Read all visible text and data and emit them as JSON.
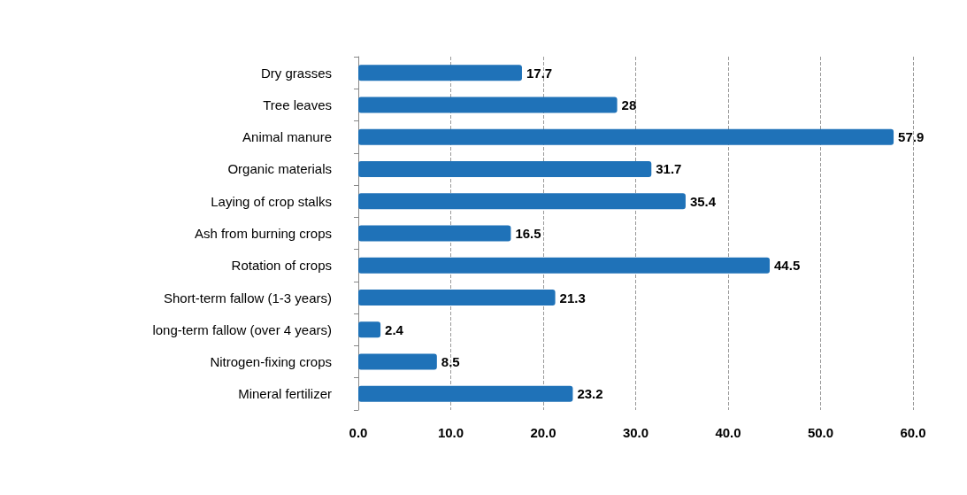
{
  "chart_data": {
    "type": "bar",
    "orientation": "horizontal",
    "categories": [
      "Dry grasses",
      "Tree leaves",
      "Animal manure",
      "Organic materials",
      "Laying of crop stalks",
      "Ash from burning crops",
      "Rotation of crops",
      "Short-term fallow (1-3 years)",
      "long-term fallow (over 4 years)",
      "Nitrogen-fixing crops",
      "Mineral fertilizer"
    ],
    "values": [
      17.7,
      28,
      57.9,
      31.7,
      35.4,
      16.5,
      44.5,
      21.3,
      2.4,
      8.5,
      23.2
    ],
    "color": "#1f72b8",
    "xlim": [
      0,
      60
    ],
    "xticks": [
      {
        "value": 0,
        "label": "0.0"
      },
      {
        "value": 10,
        "label": "10.0"
      },
      {
        "value": 20,
        "label": "20.0"
      },
      {
        "value": 30,
        "label": "30.0"
      },
      {
        "value": 40,
        "label": "40.0"
      },
      {
        "value": 50,
        "label": "50.0"
      },
      {
        "value": 60,
        "label": "60.0"
      }
    ],
    "grid": "x",
    "data_labels": true
  }
}
